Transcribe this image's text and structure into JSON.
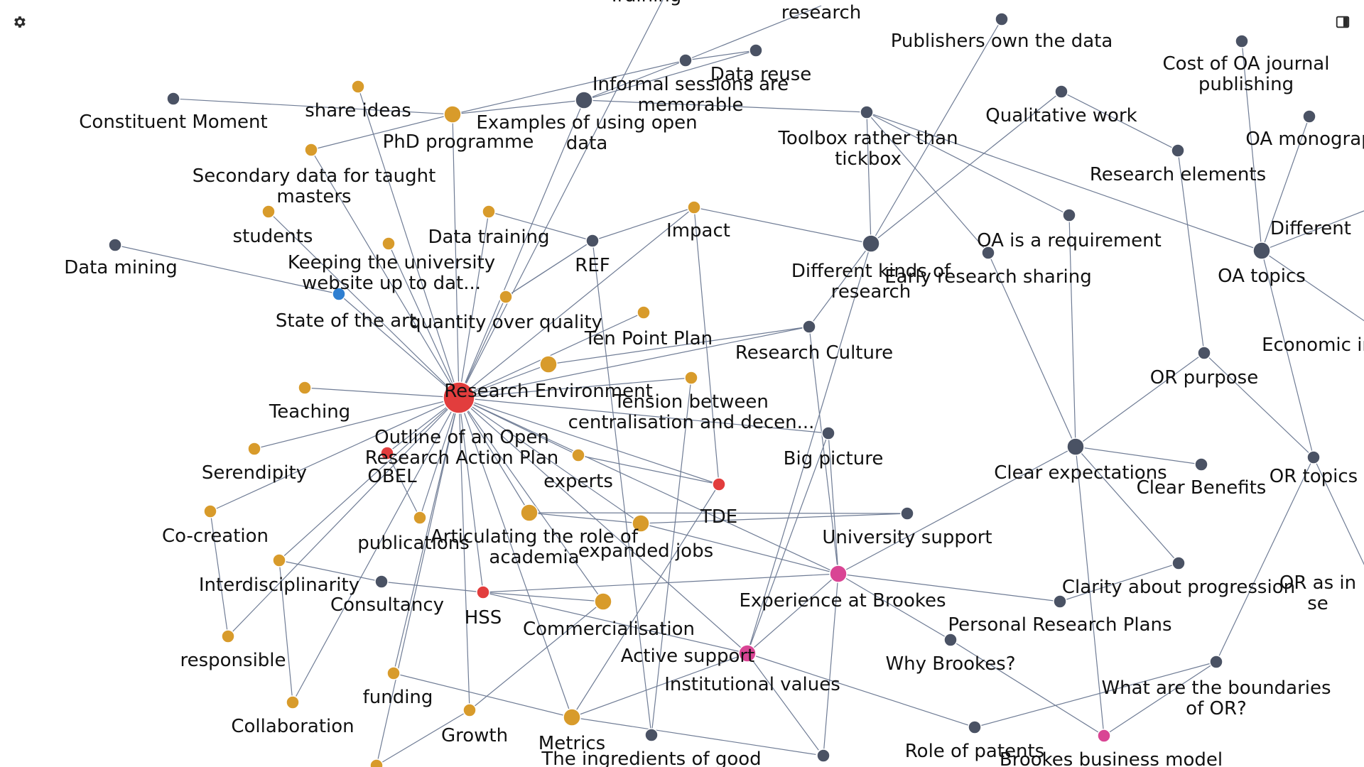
{
  "colors": {
    "background": "#ffffff",
    "edge": "#6f7c95",
    "label": "#111111",
    "node_gray": "#4a5264",
    "node_gold": "#d89b2b",
    "node_red": "#e23d3d",
    "node_pink": "#d94594",
    "node_blue": "#2f7fd1"
  },
  "toolbar": {
    "settings_icon": "gear-icon",
    "panel_icon": "sidebar-toggle-icon"
  },
  "graph": {
    "nodes": [
      {
        "id": "research_env",
        "label": "Research Environment",
        "color": "red",
        "size": "large"
      },
      {
        "id": "outline_oa",
        "label": "Outline of an Open Research Action Plan",
        "color": "red",
        "size": "small"
      },
      {
        "id": "tde",
        "label": "TDE",
        "color": "red",
        "size": "small"
      },
      {
        "id": "hss",
        "label": "HSS",
        "color": "red",
        "size": "small"
      },
      {
        "id": "exp_brookes",
        "label": "Experience at Brookes",
        "color": "pink",
        "size": "medium"
      },
      {
        "id": "active_support",
        "label": "Active support",
        "color": "pink",
        "size": "medium"
      },
      {
        "id": "brookes_bm",
        "label": "Brookes business model",
        "color": "pink",
        "size": "small"
      },
      {
        "id": "state_art",
        "label": "State of the art",
        "color": "blue",
        "size": "small"
      },
      {
        "id": "share_ideas",
        "label": "share ideas",
        "color": "gold",
        "size": "small"
      },
      {
        "id": "phd",
        "label": "PhD programme",
        "color": "gold",
        "size": "medium"
      },
      {
        "id": "secondary",
        "label": "Secondary data for taught masters",
        "color": "gold",
        "size": "small"
      },
      {
        "id": "students",
        "label": "students",
        "color": "gold",
        "size": "small"
      },
      {
        "id": "keeping",
        "label": "Keeping the university website up to dat...",
        "color": "gold",
        "size": "small"
      },
      {
        "id": "data_training",
        "label": "Data training",
        "color": "gold",
        "size": "small"
      },
      {
        "id": "impact",
        "label": "Impact",
        "color": "gold",
        "size": "small"
      },
      {
        "id": "quantity",
        "label": "quantity over quality",
        "color": "gold",
        "size": "small"
      },
      {
        "id": "ten_point",
        "label": "Ten Point Plan",
        "color": "gold",
        "size": "small"
      },
      {
        "id": "gold_mid",
        "label": "",
        "color": "gold",
        "size": "medium"
      },
      {
        "id": "tension",
        "label": "Tension between centralisation and decen...",
        "color": "gold",
        "size": "small"
      },
      {
        "id": "teaching",
        "label": "Teaching",
        "color": "gold",
        "size": "small"
      },
      {
        "id": "serendipity",
        "label": "Serendipity",
        "color": "gold",
        "size": "small"
      },
      {
        "id": "experts",
        "label": "experts",
        "color": "gold",
        "size": "small"
      },
      {
        "id": "cocreation",
        "label": "Co-creation",
        "color": "gold",
        "size": "small"
      },
      {
        "id": "publications",
        "label": "publications",
        "color": "gold",
        "size": "small"
      },
      {
        "id": "articulating",
        "label": "Articulating the role of academia",
        "color": "gold",
        "size": "medium"
      },
      {
        "id": "expanded",
        "label": "expanded jobs",
        "color": "gold",
        "size": "medium"
      },
      {
        "id": "interdisc",
        "label": "Interdisciplinarity",
        "color": "gold",
        "size": "small"
      },
      {
        "id": "commercial",
        "label": "Commercialisation",
        "color": "gold",
        "size": "medium"
      },
      {
        "id": "responsible",
        "label": "responsible",
        "color": "gold",
        "size": "small"
      },
      {
        "id": "funding",
        "label": "funding",
        "color": "gold",
        "size": "small"
      },
      {
        "id": "collaboration",
        "label": "Collaboration",
        "color": "gold",
        "size": "small"
      },
      {
        "id": "growth",
        "label": "Growth",
        "color": "gold",
        "size": "small"
      },
      {
        "id": "metrics",
        "label": "Metrics",
        "color": "gold",
        "size": "medium"
      },
      {
        "id": "gold_bottom",
        "label": "",
        "color": "gold",
        "size": "small"
      },
      {
        "id": "constituent",
        "label": "Constituent Moment",
        "color": "gray",
        "size": "small"
      },
      {
        "id": "data_mining",
        "label": "Data mining",
        "color": "gray",
        "size": "small"
      },
      {
        "id": "obel",
        "label": "OBEL",
        "color": "gray",
        "size": "none"
      },
      {
        "id": "consultancy",
        "label": "Consultancy",
        "color": "gray",
        "size": "small"
      },
      {
        "id": "examples",
        "label": "Examples of using open data",
        "color": "gray",
        "size": "medium"
      },
      {
        "id": "informal",
        "label": "Informal sessions are memorable",
        "color": "gray",
        "size": "small"
      },
      {
        "id": "data_reuse",
        "label": "Data reuse",
        "color": "gray",
        "size": "small"
      },
      {
        "id": "ref",
        "label": "REF",
        "color": "gray",
        "size": "small"
      },
      {
        "id": "research_top",
        "label": "research",
        "color": "gray",
        "size": "none"
      },
      {
        "id": "toolbox",
        "label": "Toolbox rather than tickbox",
        "color": "gray",
        "size": "small"
      },
      {
        "id": "publishers",
        "label": "Publishers own the data",
        "color": "gray",
        "size": "small"
      },
      {
        "id": "diff_kinds",
        "label": "Different kinds of research",
        "color": "gray",
        "size": "medium"
      },
      {
        "id": "research_culture",
        "label": "Research Culture",
        "color": "gray",
        "size": "small"
      },
      {
        "id": "big_picture",
        "label": "Big picture",
        "color": "gray",
        "size": "small"
      },
      {
        "id": "univ_support",
        "label": "University support",
        "color": "gray",
        "size": "small"
      },
      {
        "id": "qualitative",
        "label": "Qualitative work",
        "color": "gray",
        "size": "small"
      },
      {
        "id": "oa_requirement",
        "label": "OA is a requirement",
        "color": "gray",
        "size": "small"
      },
      {
        "id": "early_sharing",
        "label": "Early research sharing",
        "color": "gray",
        "size": "small"
      },
      {
        "id": "cost_oa",
        "label": "Cost of OA journal publishing",
        "color": "gray",
        "size": "small"
      },
      {
        "id": "oa_mono",
        "label": "OA monograp",
        "color": "gray",
        "size": "small"
      },
      {
        "id": "research_elements",
        "label": "Research elements",
        "color": "gray",
        "size": "small"
      },
      {
        "id": "different",
        "label": "Different",
        "color": "gray",
        "size": "none"
      },
      {
        "id": "oa_topics",
        "label": "OA topics",
        "color": "gray",
        "size": "medium"
      },
      {
        "id": "economic",
        "label": "Economic in",
        "color": "gray",
        "size": "none"
      },
      {
        "id": "or_purpose",
        "label": "OR purpose",
        "color": "gray",
        "size": "small"
      },
      {
        "id": "clear_exp",
        "label": "Clear expectations",
        "color": "gray",
        "size": "medium"
      },
      {
        "id": "clear_benefits",
        "label": "Clear Benefits",
        "color": "gray",
        "size": "small"
      },
      {
        "id": "or_topics",
        "label": "OR topics",
        "color": "gray",
        "size": "small"
      },
      {
        "id": "clarity",
        "label": "Clarity about progression",
        "color": "gray",
        "size": "small"
      },
      {
        "id": "or_as",
        "label": "OR as in se",
        "color": "gray",
        "size": "none"
      },
      {
        "id": "personal_plans",
        "label": "Personal Research Plans",
        "color": "gray",
        "size": "small"
      },
      {
        "id": "why_brookes",
        "label": "Why Brookes?",
        "color": "gray",
        "size": "small"
      },
      {
        "id": "boundaries",
        "label": "What are the boundaries of OR?",
        "color": "gray",
        "size": "small"
      },
      {
        "id": "patents",
        "label": "Role of patents",
        "color": "gray",
        "size": "small"
      },
      {
        "id": "inst_values",
        "label": "Institutional values",
        "color": "gray",
        "size": "small"
      },
      {
        "id": "ingredients",
        "label": "The ingredients of good",
        "color": "gray",
        "size": "small"
      },
      {
        "id": "ingredients_b",
        "label": "",
        "color": "gray",
        "size": "small"
      },
      {
        "id": "training_top",
        "label": "Training",
        "color": "gray",
        "size": "none"
      }
    ],
    "edges": [
      [
        "research_env",
        "phd"
      ],
      [
        "research_env",
        "share_ideas"
      ],
      [
        "research_env",
        "secondary"
      ],
      [
        "research_env",
        "students"
      ],
      [
        "research_env",
        "keeping"
      ],
      [
        "research_env",
        "data_training"
      ],
      [
        "research_env",
        "impact"
      ],
      [
        "research_env",
        "quantity"
      ],
      [
        "research_env",
        "ten_point"
      ],
      [
        "research_env",
        "gold_mid"
      ],
      [
        "research_env",
        "tension"
      ],
      [
        "research_env",
        "teaching"
      ],
      [
        "research_env",
        "serendipity"
      ],
      [
        "research_env",
        "experts"
      ],
      [
        "research_env",
        "cocreation"
      ],
      [
        "research_env",
        "publications"
      ],
      [
        "research_env",
        "articulating"
      ],
      [
        "research_env",
        "expanded"
      ],
      [
        "research_env",
        "interdisc"
      ],
      [
        "research_env",
        "commercial"
      ],
      [
        "research_env",
        "responsible"
      ],
      [
        "research_env",
        "funding"
      ],
      [
        "research_env",
        "collaboration"
      ],
      [
        "research_env",
        "growth"
      ],
      [
        "research_env",
        "metrics"
      ],
      [
        "research_env",
        "gold_bottom"
      ],
      [
        "research_env",
        "outline_oa"
      ],
      [
        "research_env",
        "hss"
      ],
      [
        "research_env",
        "tde"
      ],
      [
        "research_env",
        "active_support"
      ],
      [
        "research_env",
        "exp_brookes"
      ],
      [
        "research_env",
        "research_culture"
      ],
      [
        "research_env",
        "big_picture"
      ],
      [
        "research_env",
        "training_top"
      ],
      [
        "research_env",
        "state_art"
      ],
      [
        "research_env",
        "examples"
      ],
      [
        "state_art",
        "data_mining"
      ],
      [
        "constituent",
        "phd"
      ],
      [
        "phd",
        "examples"
      ],
      [
        "phd",
        "informal"
      ],
      [
        "phd",
        "secondary"
      ],
      [
        "examples",
        "informal"
      ],
      [
        "examples",
        "data_reuse"
      ],
      [
        "examples",
        "toolbox"
      ],
      [
        "informal",
        "data_reuse"
      ],
      [
        "informal",
        "research_top"
      ],
      [
        "ref",
        "impact"
      ],
      [
        "ref",
        "data_training"
      ],
      [
        "ref",
        "ingredients"
      ],
      [
        "ref",
        "quantity"
      ],
      [
        "impact",
        "diff_kinds"
      ],
      [
        "impact",
        "tde"
      ],
      [
        "diff_kinds",
        "toolbox"
      ],
      [
        "diff_kinds",
        "publishers"
      ],
      [
        "diff_kinds",
        "research_culture"
      ],
      [
        "diff_kinds",
        "active_support"
      ],
      [
        "diff_kinds",
        "qualitative"
      ],
      [
        "research_culture",
        "gold_mid"
      ],
      [
        "research_culture",
        "exp_brookes"
      ],
      [
        "toolbox",
        "oa_requirement"
      ],
      [
        "toolbox",
        "oa_topics"
      ],
      [
        "oa_requirement",
        "clear_exp"
      ],
      [
        "early_sharing",
        "toolbox"
      ],
      [
        "early_sharing",
        "clear_exp"
      ],
      [
        "qualitative",
        "research_elements"
      ],
      [
        "research_elements",
        "or_purpose"
      ],
      [
        "oa_topics",
        "cost_oa"
      ],
      [
        "oa_topics",
        "oa_mono"
      ],
      [
        "oa_topics",
        "or_topics"
      ],
      [
        "oa_topics",
        "different"
      ],
      [
        "oa_topics",
        "economic"
      ],
      [
        "or_purpose",
        "clear_exp"
      ],
      [
        "or_purpose",
        "or_topics"
      ],
      [
        "clear_exp",
        "clear_benefits"
      ],
      [
        "clear_exp",
        "clarity"
      ],
      [
        "clear_exp",
        "exp_brookes"
      ],
      [
        "clear_exp",
        "brookes_bm"
      ],
      [
        "or_topics",
        "boundaries"
      ],
      [
        "or_topics",
        "or_as"
      ],
      [
        "clarity",
        "personal_plans"
      ],
      [
        "boundaries",
        "brookes_bm"
      ],
      [
        "boundaries",
        "patents"
      ],
      [
        "exp_brookes",
        "personal_plans"
      ],
      [
        "exp_brookes",
        "why_brookes"
      ],
      [
        "exp_brookes",
        "active_support"
      ],
      [
        "exp_brookes",
        "ingredients_b"
      ],
      [
        "exp_brookes",
        "big_picture"
      ],
      [
        "exp_brookes",
        "expanded"
      ],
      [
        "exp_brookes",
        "hss"
      ],
      [
        "why_brookes",
        "brookes_bm"
      ],
      [
        "active_support",
        "inst_values"
      ],
      [
        "active_support",
        "hss"
      ],
      [
        "active_support",
        "metrics"
      ],
      [
        "active_support",
        "patents"
      ],
      [
        "active_support",
        "big_picture"
      ],
      [
        "tde",
        "experts"
      ],
      [
        "tde",
        "metrics"
      ],
      [
        "hss",
        "consultancy"
      ],
      [
        "hss",
        "commercial"
      ],
      [
        "articulating",
        "univ_support"
      ],
      [
        "expanded",
        "univ_support"
      ],
      [
        "expanded",
        "articulating"
      ],
      [
        "commercial",
        "growth"
      ],
      [
        "metrics",
        "funding"
      ],
      [
        "metrics",
        "ingredients_b"
      ],
      [
        "interdisc",
        "consultancy"
      ],
      [
        "cocreation",
        "responsible"
      ],
      [
        "interdisc",
        "collaboration"
      ],
      [
        "publications",
        "outline_oa"
      ],
      [
        "growth",
        "gold_bottom"
      ],
      [
        "tension",
        "ingredients"
      ],
      [
        "quantity",
        "ref"
      ]
    ]
  }
}
